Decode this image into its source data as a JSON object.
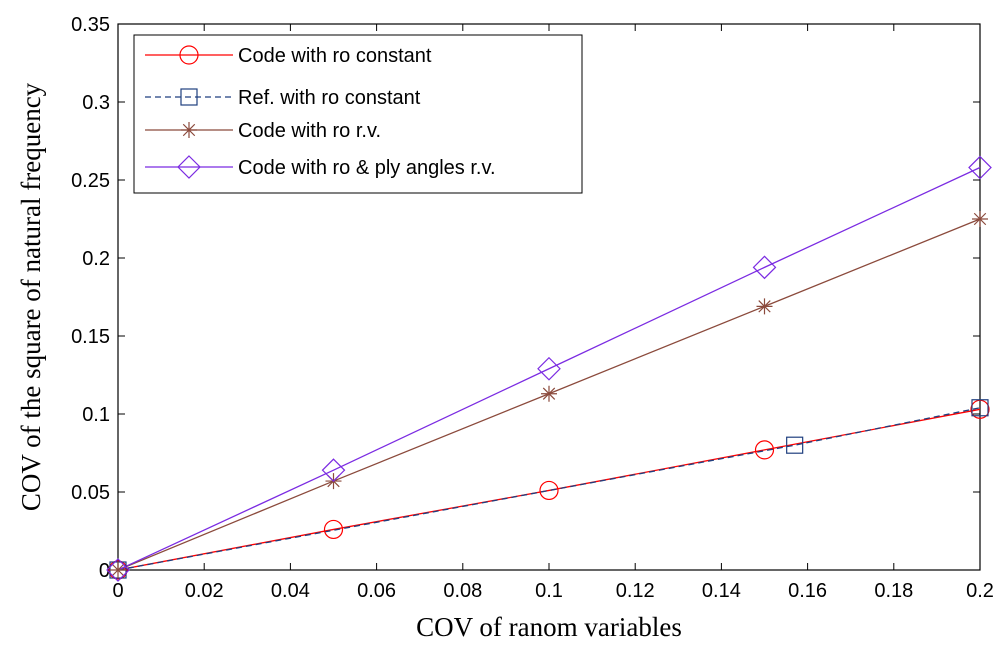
{
  "chart_data": {
    "type": "line",
    "xlabel": "COV of ranom variables",
    "ylabel": "COV of the square of natural frequency",
    "xlim": [
      0,
      0.2
    ],
    "ylim": [
      0,
      0.35
    ],
    "x_ticks": [
      "0",
      "0.02",
      "0.04",
      "0.06",
      "0.08",
      "0.1",
      "0.12",
      "0.14",
      "0.16",
      "0.18",
      "0.2"
    ],
    "y_ticks": [
      "0",
      "0.05",
      "0.1",
      "0.15",
      "0.2",
      "0.25",
      "0.3",
      "0.35"
    ],
    "grid": false,
    "legend_position": "top-left",
    "series": [
      {
        "name": "Code with ro constant",
        "color": "#ff0000",
        "marker": "circle",
        "line_style": "solid",
        "x": [
          0,
          0.05,
          0.1,
          0.15,
          0.2
        ],
        "y": [
          0,
          0.026,
          0.051,
          0.077,
          0.103
        ]
      },
      {
        "name": "Ref. with ro constant",
        "color": "#1f3f7f",
        "marker": "square",
        "line_style": "dashed",
        "x": [
          0,
          0.157,
          0.2
        ],
        "y": [
          0,
          0.08,
          0.104
        ]
      },
      {
        "name": "Code with ro r.v.",
        "color": "#8b4a3c",
        "marker": "star",
        "line_style": "solid",
        "x": [
          0,
          0.05,
          0.1,
          0.15,
          0.2
        ],
        "y": [
          0,
          0.057,
          0.113,
          0.169,
          0.225
        ]
      },
      {
        "name": "Code with ro & ply angles r.v.",
        "color": "#7b2be2",
        "marker": "diamond",
        "line_style": "solid",
        "x": [
          0,
          0.05,
          0.1,
          0.15,
          0.2
        ],
        "y": [
          0,
          0.064,
          0.129,
          0.194,
          0.258
        ]
      }
    ]
  }
}
